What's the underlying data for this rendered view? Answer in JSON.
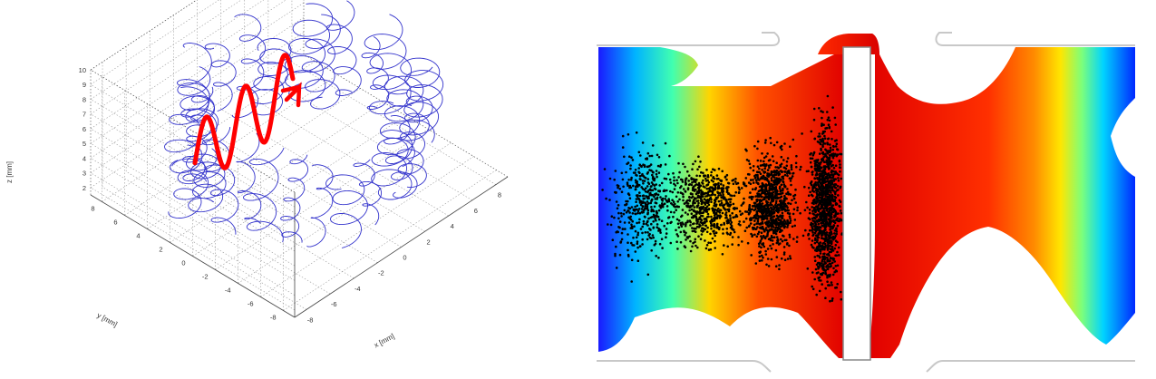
{
  "chart_data": [
    {
      "type": "line3d",
      "title": "",
      "xlabel": "x [mm]",
      "ylabel": "y [mm]",
      "zlabel": "z [mm]",
      "x_ticks": [
        "-8",
        "-6",
        "-4",
        "-2",
        "0",
        "2",
        "4",
        "6",
        "8"
      ],
      "y_ticks": [
        "8",
        "6",
        "4",
        "2",
        "0",
        "-2",
        "-4",
        "-6",
        "-8"
      ],
      "z_ticks": [
        "2",
        "3",
        "4",
        "5",
        "6",
        "7",
        "8",
        "9",
        "10"
      ],
      "xlim": [
        -9,
        9
      ],
      "ylim": [
        -9,
        9
      ],
      "zlim": [
        1.5,
        10
      ],
      "grid": true,
      "series_color": "#3333cc",
      "annotation_color": "#ff0000",
      "annotation_icon": "helix-arrow-icon"
    },
    {
      "type": "heatmap",
      "title": "",
      "colormap": "jet",
      "particle_color": "#000000",
      "wall_color": "#c8c8c8"
    }
  ]
}
